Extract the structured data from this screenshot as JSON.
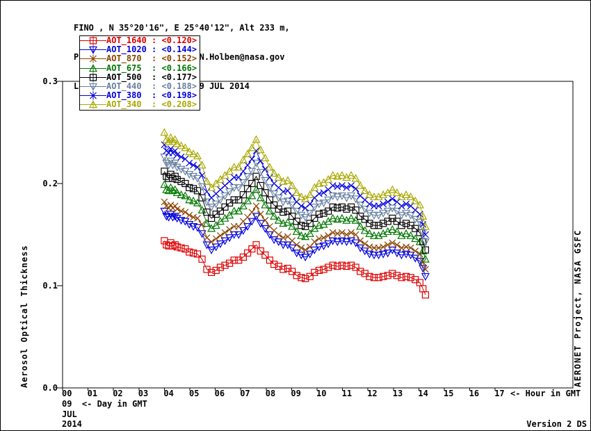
{
  "header": {
    "line1": "FINO , N 35°20'16\", E 25°40'12\", Alt 233 m,",
    "line2": "PI : Brent Holben, Brent.N.Holben@nasa.gov",
    "line3": "Level 1.5 AOT; Data from 9 JUL 2014"
  },
  "chart_data": {
    "type": "line",
    "title": "",
    "ylabel": "Aerosol Optical Thickness",
    "hour_arrow_label": "<- Hour in GMT",
    "day_line": "09  <- Day in GMT",
    "month_line": "JUL",
    "year_line": "2014",
    "version_label": "Version 2 DS",
    "right_label": "AERONET Project, NASA GSFC",
    "legend_position": "top-left",
    "grid": false,
    "ylim": [
      0.0,
      0.3
    ],
    "yticks": [
      0.0,
      0.1,
      0.2,
      0.3
    ],
    "xlim_hours": [
      0,
      20
    ],
    "xticks": [
      "00",
      "01",
      "02",
      "03",
      "04",
      "05",
      "06",
      "07",
      "08",
      "09",
      "10",
      "11",
      "12",
      "13",
      "14",
      "15",
      "16",
      "17"
    ],
    "x_hours": [
      4.0,
      4.08,
      4.17,
      4.25,
      4.33,
      4.42,
      4.5,
      4.66,
      4.82,
      4.98,
      5.14,
      5.3,
      5.48,
      5.67,
      5.85,
      6.03,
      6.2,
      6.38,
      6.56,
      6.74,
      6.92,
      7.1,
      7.27,
      7.44,
      7.61,
      7.78,
      7.96,
      8.14,
      8.31,
      8.49,
      8.67,
      8.85,
      9.02,
      9.2,
      9.38,
      9.54,
      9.72,
      9.9,
      10.08,
      10.26,
      10.44,
      10.62,
      10.8,
      10.98,
      11.16,
      11.34,
      11.52,
      11.7,
      11.88,
      12.06,
      12.24,
      12.42,
      12.6,
      12.78,
      12.96,
      13.14,
      13.32,
      13.5,
      13.68,
      13.86,
      14.04,
      14.16,
      14.26
    ],
    "series": [
      {
        "name": "AOT_1640",
        "legend_label": "AOT_1640",
        "legend_value": "<0.120>",
        "mean": 0.12,
        "color": "#dd0000",
        "marker": "square",
        "values": [
          0.144,
          0.14,
          0.139,
          0.142,
          0.139,
          0.14,
          0.138,
          0.137,
          0.136,
          0.133,
          0.132,
          0.131,
          0.126,
          0.116,
          0.113,
          0.115,
          0.118,
          0.12,
          0.122,
          0.125,
          0.125,
          0.128,
          0.132,
          0.136,
          0.14,
          0.134,
          0.13,
          0.125,
          0.121,
          0.119,
          0.116,
          0.117,
          0.114,
          0.11,
          0.108,
          0.107,
          0.109,
          0.113,
          0.115,
          0.116,
          0.118,
          0.12,
          0.119,
          0.12,
          0.119,
          0.12,
          0.118,
          0.114,
          0.112,
          0.109,
          0.108,
          0.108,
          0.109,
          0.11,
          0.112,
          0.11,
          0.108,
          0.109,
          0.108,
          0.106,
          0.103,
          0.097,
          0.091
        ]
      },
      {
        "name": "AOT_1020",
        "legend_label": "AOT_1020",
        "legend_value": "<0.144>",
        "mean": 0.144,
        "color": "#0000dd",
        "marker": "triangle-down",
        "values": [
          0.173,
          0.168,
          0.167,
          0.17,
          0.167,
          0.168,
          0.166,
          0.164,
          0.163,
          0.16,
          0.158,
          0.157,
          0.151,
          0.14,
          0.135,
          0.138,
          0.141,
          0.144,
          0.147,
          0.15,
          0.15,
          0.154,
          0.158,
          0.163,
          0.168,
          0.161,
          0.156,
          0.15,
          0.145,
          0.143,
          0.14,
          0.14,
          0.137,
          0.132,
          0.13,
          0.128,
          0.131,
          0.135,
          0.138,
          0.139,
          0.141,
          0.144,
          0.143,
          0.144,
          0.143,
          0.144,
          0.142,
          0.137,
          0.134,
          0.131,
          0.13,
          0.13,
          0.131,
          0.132,
          0.135,
          0.132,
          0.13,
          0.131,
          0.13,
          0.127,
          0.124,
          0.117,
          0.109
        ]
      },
      {
        "name": "AOT_870",
        "legend_label": "AOT_870",
        "legend_value": "<0.152>",
        "mean": 0.152,
        "color": "#8b4400",
        "marker": "x",
        "values": [
          0.182,
          0.178,
          0.176,
          0.179,
          0.176,
          0.178,
          0.175,
          0.173,
          0.172,
          0.169,
          0.167,
          0.166,
          0.16,
          0.147,
          0.143,
          0.146,
          0.149,
          0.152,
          0.155,
          0.158,
          0.158,
          0.163,
          0.167,
          0.172,
          0.178,
          0.17,
          0.164,
          0.158,
          0.154,
          0.15,
          0.147,
          0.148,
          0.144,
          0.14,
          0.137,
          0.135,
          0.138,
          0.143,
          0.146,
          0.147,
          0.149,
          0.152,
          0.151,
          0.152,
          0.15,
          0.152,
          0.15,
          0.144,
          0.141,
          0.138,
          0.137,
          0.137,
          0.138,
          0.14,
          0.142,
          0.14,
          0.137,
          0.138,
          0.137,
          0.134,
          0.131,
          0.123,
          0.116
        ]
      },
      {
        "name": "AOT_675",
        "legend_label": "AOT_675",
        "legend_value": "<0.166>",
        "mean": 0.166,
        "color": "#007700",
        "marker": "triangle-up",
        "values": [
          0.199,
          0.194,
          0.193,
          0.196,
          0.193,
          0.194,
          0.191,
          0.189,
          0.188,
          0.184,
          0.183,
          0.181,
          0.174,
          0.161,
          0.156,
          0.159,
          0.163,
          0.166,
          0.169,
          0.173,
          0.173,
          0.178,
          0.183,
          0.188,
          0.194,
          0.186,
          0.179,
          0.173,
          0.168,
          0.164,
          0.161,
          0.162,
          0.158,
          0.153,
          0.149,
          0.148,
          0.151,
          0.156,
          0.159,
          0.16,
          0.163,
          0.166,
          0.165,
          0.166,
          0.164,
          0.166,
          0.164,
          0.158,
          0.154,
          0.151,
          0.149,
          0.149,
          0.151,
          0.153,
          0.155,
          0.153,
          0.149,
          0.151,
          0.149,
          0.146,
          0.143,
          0.134,
          0.126
        ]
      },
      {
        "name": "AOT_500",
        "legend_label": "AOT_500",
        "legend_value": "<0.177>",
        "mean": 0.177,
        "color": "#000000",
        "marker": "square",
        "values": [
          0.212,
          0.207,
          0.205,
          0.209,
          0.205,
          0.207,
          0.204,
          0.202,
          0.2,
          0.196,
          0.195,
          0.193,
          0.186,
          0.172,
          0.166,
          0.17,
          0.173,
          0.177,
          0.181,
          0.184,
          0.184,
          0.189,
          0.195,
          0.2,
          0.207,
          0.198,
          0.191,
          0.184,
          0.179,
          0.175,
          0.172,
          0.173,
          0.168,
          0.163,
          0.159,
          0.158,
          0.161,
          0.166,
          0.17,
          0.171,
          0.173,
          0.177,
          0.176,
          0.177,
          0.175,
          0.177,
          0.174,
          0.168,
          0.165,
          0.161,
          0.159,
          0.159,
          0.161,
          0.163,
          0.166,
          0.163,
          0.159,
          0.161,
          0.159,
          0.156,
          0.152,
          0.143,
          0.135
        ]
      },
      {
        "name": "AOT_440",
        "legend_label": "AOT_440",
        "legend_value": "<0.188>",
        "mean": 0.188,
        "color": "#66809e",
        "marker": "triangle-down",
        "values": [
          0.226,
          0.22,
          0.218,
          0.222,
          0.218,
          0.22,
          0.216,
          0.214,
          0.212,
          0.209,
          0.207,
          0.205,
          0.197,
          0.182,
          0.177,
          0.18,
          0.184,
          0.188,
          0.192,
          0.196,
          0.196,
          0.201,
          0.207,
          0.212,
          0.22,
          0.211,
          0.203,
          0.196,
          0.19,
          0.186,
          0.182,
          0.183,
          0.179,
          0.173,
          0.169,
          0.167,
          0.171,
          0.177,
          0.18,
          0.181,
          0.184,
          0.188,
          0.187,
          0.188,
          0.186,
          0.188,
          0.185,
          0.179,
          0.175,
          0.171,
          0.169,
          0.169,
          0.171,
          0.173,
          0.176,
          0.173,
          0.169,
          0.171,
          0.169,
          0.165,
          0.162,
          0.152,
          0.143
        ]
      },
      {
        "name": "AOT_380",
        "legend_label": "AOT_380",
        "legend_value": "<0.198>",
        "mean": 0.198,
        "color": "#0000dd",
        "marker": "x",
        "values": [
          0.238,
          0.232,
          0.23,
          0.234,
          0.23,
          0.232,
          0.228,
          0.226,
          0.224,
          0.22,
          0.218,
          0.216,
          0.208,
          0.192,
          0.186,
          0.19,
          0.194,
          0.198,
          0.202,
          0.206,
          0.206,
          0.212,
          0.218,
          0.224,
          0.232,
          0.222,
          0.214,
          0.206,
          0.2,
          0.196,
          0.192,
          0.193,
          0.188,
          0.182,
          0.178,
          0.176,
          0.18,
          0.186,
          0.19,
          0.191,
          0.194,
          0.198,
          0.197,
          0.198,
          0.196,
          0.198,
          0.195,
          0.188,
          0.184,
          0.18,
          0.178,
          0.178,
          0.18,
          0.182,
          0.185,
          0.182,
          0.178,
          0.18,
          0.178,
          0.174,
          0.17,
          0.16,
          0.15
        ]
      },
      {
        "name": "AOT_340",
        "legend_label": "AOT_340",
        "legend_value": "<0.208>",
        "mean": 0.208,
        "color": "#a8a800",
        "marker": "triangle-up",
        "values": [
          0.25,
          0.243,
          0.241,
          0.245,
          0.241,
          0.243,
          0.239,
          0.237,
          0.235,
          0.231,
          0.229,
          0.227,
          0.218,
          0.202,
          0.196,
          0.2,
          0.204,
          0.208,
          0.212,
          0.216,
          0.216,
          0.223,
          0.229,
          0.235,
          0.243,
          0.233,
          0.225,
          0.216,
          0.21,
          0.206,
          0.202,
          0.203,
          0.198,
          0.191,
          0.187,
          0.185,
          0.189,
          0.196,
          0.2,
          0.201,
          0.204,
          0.208,
          0.207,
          0.208,
          0.206,
          0.208,
          0.205,
          0.198,
          0.193,
          0.189,
          0.187,
          0.187,
          0.189,
          0.191,
          0.194,
          0.191,
          0.187,
          0.189,
          0.187,
          0.183,
          0.179,
          0.168,
          0.158
        ]
      }
    ]
  }
}
